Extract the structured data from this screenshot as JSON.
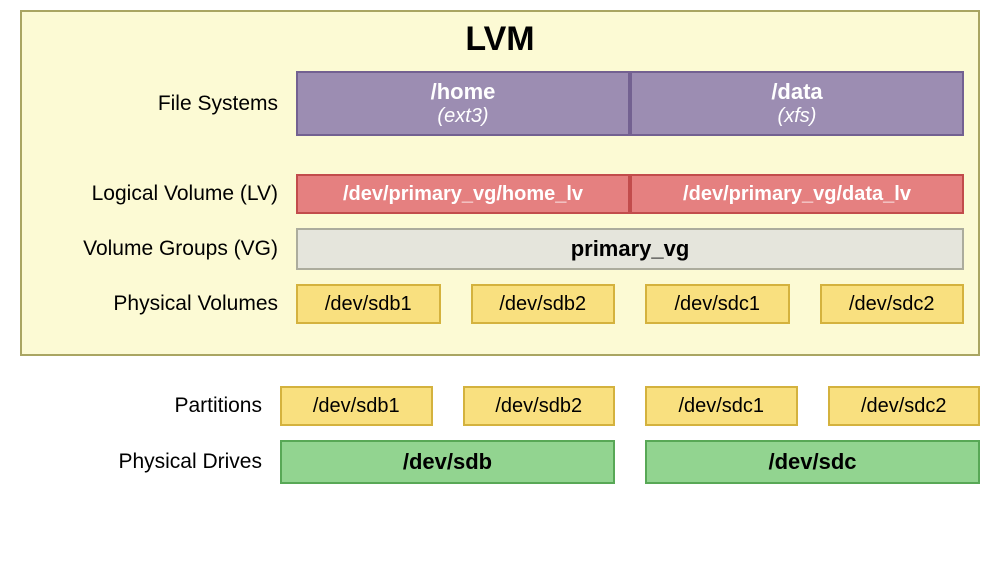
{
  "title": "LVM",
  "colors": {
    "lvm_bg": "#fcfad4",
    "lvm_border": "#a9a562",
    "fs_bg": "#9c8db2",
    "fs_border": "#736191",
    "fs_text": "#ffffff",
    "lv_bg": "#e58080",
    "lv_border": "#c24c4c",
    "lv_text": "#ffffff",
    "vg_bg": "#e5e5dc",
    "vg_border": "#acac9d",
    "vg_text": "#000000",
    "pv_bg": "#f9e07f",
    "pv_border": "#d4b23e",
    "pv_text": "#000000",
    "drive_bg": "#92d490",
    "drive_border": "#58a856",
    "drive_text": "#000000"
  },
  "labels": {
    "fs": "File Systems",
    "lv": "Logical Volume (LV)",
    "vg": "Volume Groups (VG)",
    "pv": "Physical Volumes",
    "part": "Partitions",
    "drives": "Physical Drives"
  },
  "fs": [
    {
      "mount": "/home",
      "type": "ext3"
    },
    {
      "mount": "/data",
      "type": "xfs"
    }
  ],
  "lv": [
    "/dev/primary_vg/home_lv",
    "/dev/primary_vg/data_lv"
  ],
  "vg": "primary_vg",
  "pv": [
    [
      "/dev/sdb1",
      "/dev/sdb2"
    ],
    [
      "/dev/sdc1",
      "/dev/sdc2"
    ]
  ],
  "partitions": [
    [
      "/dev/sdb1",
      "/dev/sdb2"
    ],
    [
      "/dev/sdc1",
      "/dev/sdc2"
    ]
  ],
  "drives": [
    "/dev/sdb",
    "/dev/sdc"
  ]
}
